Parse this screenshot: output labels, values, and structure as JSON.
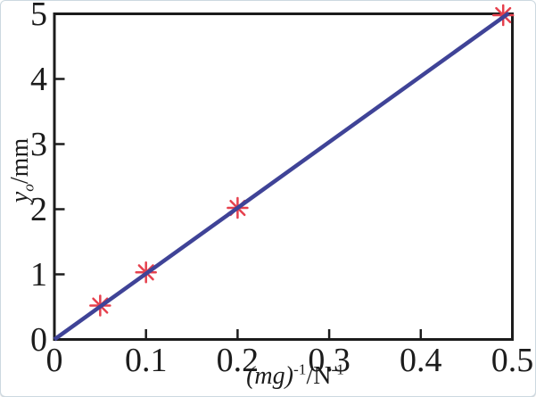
{
  "figure": {
    "background": "#ffffff",
    "border_color": "#ccd8e0"
  },
  "chart_data": {
    "type": "scatter",
    "title": "",
    "xlabel": "(mg)^-1/N^-1",
    "ylabel": "y_o/mm",
    "xlabel_parts": {
      "group": "(mg)",
      "sup1": "-1",
      "unit": "/N",
      "sup2": "-1"
    },
    "ylabel_parts": {
      "var": "y",
      "sub": "o",
      "unit": "/mm"
    },
    "xlim": [
      0,
      0.5
    ],
    "ylim": [
      0,
      5
    ],
    "x_ticks": {
      "values": [
        0,
        0.1,
        0.2,
        0.3,
        0.4,
        0.5
      ],
      "labels": [
        "0",
        "0.1",
        "0.2",
        "0.3",
        "0.4",
        "0.5"
      ]
    },
    "y_ticks": {
      "values": [
        0,
        1,
        2,
        3,
        4,
        5
      ],
      "labels": [
        "0",
        "1",
        "2",
        "3",
        "4",
        "5"
      ]
    },
    "points": [
      {
        "x": 0.05,
        "y": 0.52
      },
      {
        "x": 0.1,
        "y": 1.03
      },
      {
        "x": 0.2,
        "y": 2.02
      },
      {
        "x": 0.49,
        "y": 4.98
      }
    ],
    "fit_line": {
      "x1": 0,
      "y1": 0,
      "x2": 0.496,
      "y2": 5.01,
      "slope": 10.1
    },
    "grid": false,
    "legend": "none",
    "marker_style": "8-spoke-asterisk",
    "marker_radius_px": 11,
    "colors": {
      "line": "#3f4397",
      "marker": "#e6404d",
      "axis": "#1c1c1c"
    }
  }
}
